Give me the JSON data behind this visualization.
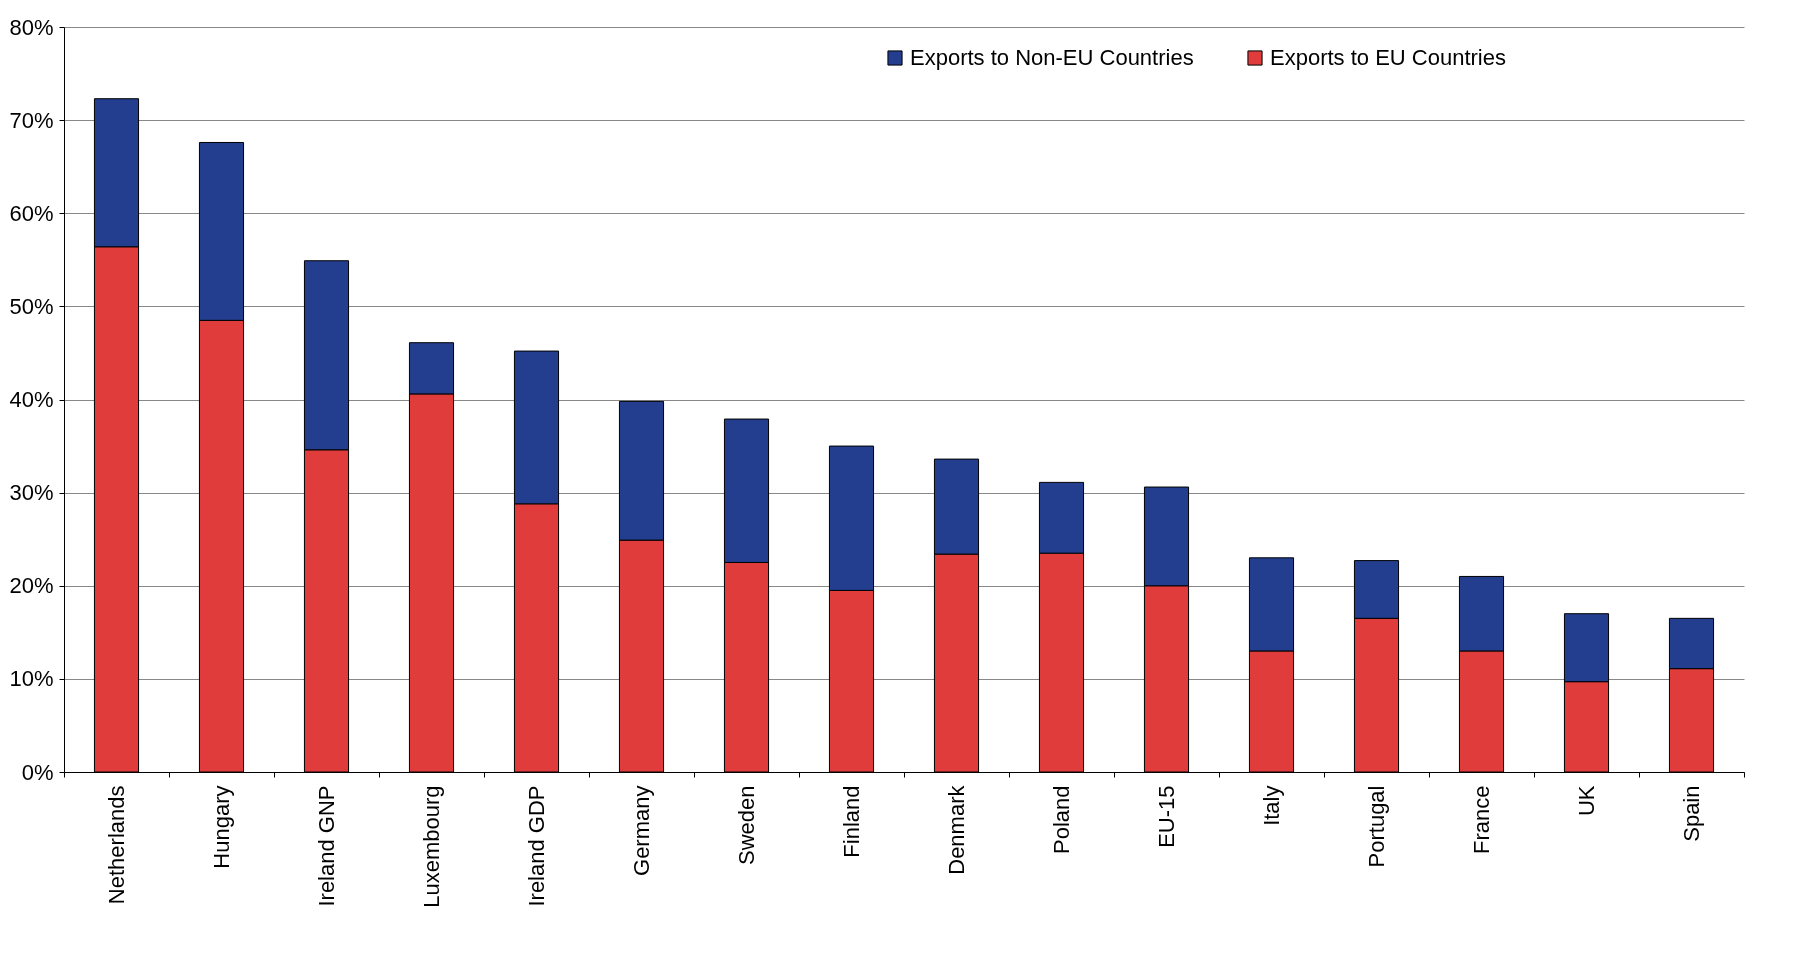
{
  "chart_data": {
    "type": "bar",
    "stacked": true,
    "categories": [
      "Netherlands",
      "Hungary",
      "Ireland GNP",
      "Luxembourg",
      "Ireland GDP",
      "Germany",
      "Sweden",
      "Finland",
      "Denmark",
      "Poland",
      "EU-15",
      "Italy",
      "Portugal",
      "France",
      "UK",
      "Spain"
    ],
    "series": [
      {
        "name": "Exports to EU Countries",
        "color": "#e03c3c",
        "values": [
          56.4,
          48.5,
          34.6,
          40.6,
          28.8,
          24.9,
          22.5,
          19.5,
          23.4,
          23.5,
          20.0,
          13.0,
          16.5,
          13.0,
          9.7,
          11.1
        ]
      },
      {
        "name": "Exports to Non-EU Countries",
        "color": "#233e8f",
        "values": [
          15.9,
          19.1,
          20.3,
          5.5,
          16.4,
          14.9,
          15.4,
          15.5,
          10.2,
          7.6,
          10.6,
          10.0,
          6.2,
          8.0,
          7.3,
          5.4
        ]
      }
    ],
    "ylim": [
      0,
      80
    ],
    "yticks": [
      {
        "value": 0,
        "label": "0%"
      },
      {
        "value": 10,
        "label": "10%"
      },
      {
        "value": 20,
        "label": "20%"
      },
      {
        "value": 30,
        "label": "30%"
      },
      {
        "value": 40,
        "label": "40%"
      },
      {
        "value": 50,
        "label": "50%"
      },
      {
        "value": 60,
        "label": "60%"
      },
      {
        "value": 70,
        "label": "70%"
      },
      {
        "value": 80,
        "label": "80%"
      }
    ],
    "grid": "y",
    "legend": "top right"
  }
}
